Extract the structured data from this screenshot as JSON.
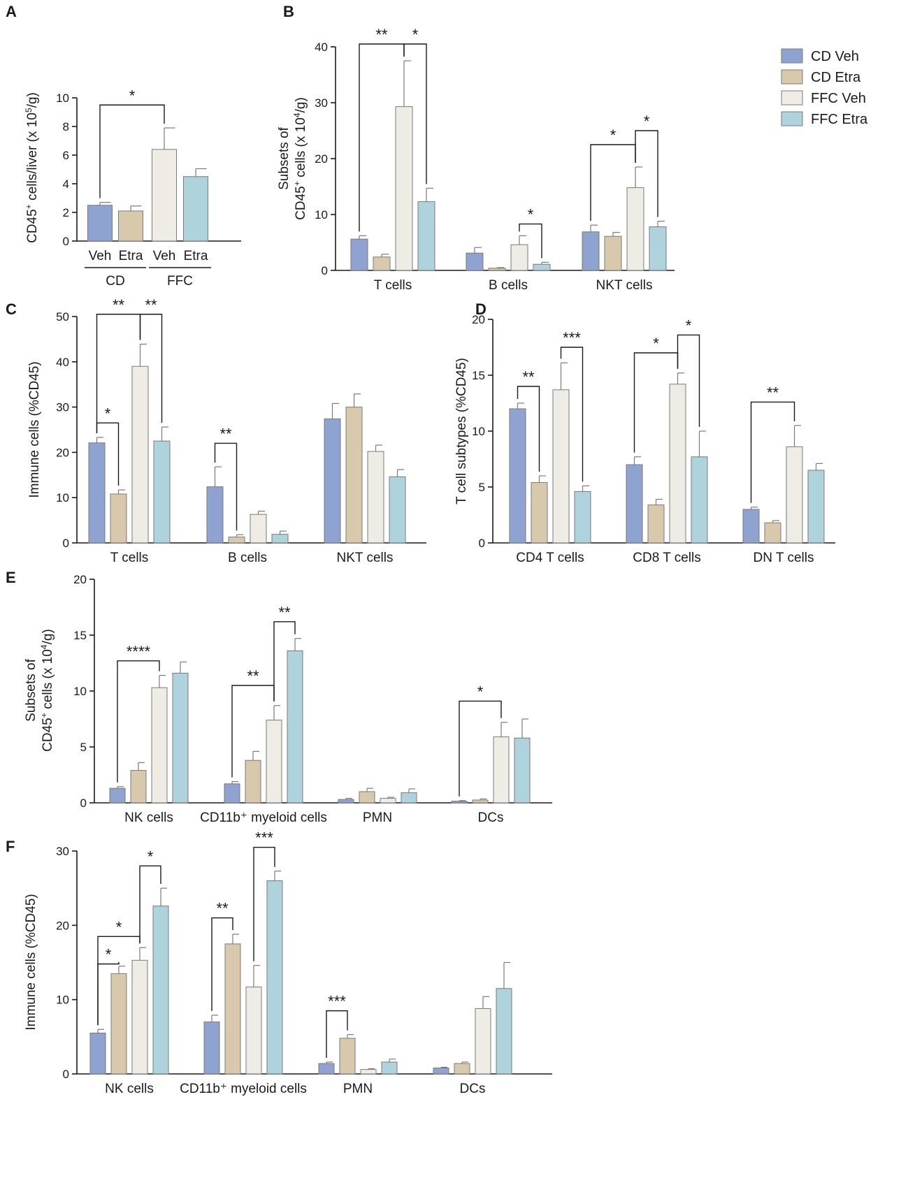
{
  "colors": {
    "CD Veh": "#8fa3d0",
    "CD Etra": "#d8c8ac",
    "FFC Veh": "#efece5",
    "FFC Etra": "#aed3dd",
    "edge": "#7a7a7a",
    "axis": "#1a1a1a"
  },
  "legend": [
    "CD Veh",
    "CD Etra",
    "FFC Veh",
    "FFC Etra"
  ],
  "chart_data": [
    {
      "panel": "A",
      "type": "bar",
      "ylabel_parts": [
        "CD45",
        "+",
        " cells/liver (x 10",
        "5",
        "/g)"
      ],
      "ylim": [
        0,
        10
      ],
      "yticks": [
        0,
        2,
        4,
        6,
        8,
        10
      ],
      "categories": [
        ""
      ],
      "series": [
        {
          "name": "CD Veh",
          "values": [
            2.5
          ],
          "errors": [
            0.2
          ]
        },
        {
          "name": "CD Etra",
          "values": [
            2.1
          ],
          "errors": [
            0.35
          ]
        },
        {
          "name": "FFC Veh",
          "values": [
            6.4
          ],
          "errors": [
            1.5
          ]
        },
        {
          "name": "FFC Etra",
          "values": [
            4.5
          ],
          "errors": [
            0.55
          ]
        }
      ],
      "bar_labels": [
        "Veh",
        "Etra",
        "Veh",
        "Etra"
      ],
      "group_labels": [
        {
          "text": "CD",
          "bars": [
            0,
            1
          ]
        },
        {
          "text": "FFC",
          "bars": [
            2,
            3
          ]
        }
      ],
      "significance": [
        {
          "category": 0,
          "from": 0,
          "to": 2,
          "y": 9.5,
          "label": "*"
        }
      ]
    },
    {
      "panel": "B",
      "type": "bar",
      "ylabel_lines": [
        [
          "Subsets of"
        ],
        [
          "CD45",
          "+",
          " cells (x 10",
          "4",
          "/g)"
        ]
      ],
      "ylim": [
        0,
        40
      ],
      "yticks": [
        0,
        10,
        20,
        30,
        40
      ],
      "categories": [
        "T cells",
        "B cells",
        "NKT cells"
      ],
      "series": [
        {
          "name": "CD Veh",
          "values": [
            5.6,
            3.1,
            6.9
          ],
          "errors": [
            0.6,
            1.0,
            1.2
          ]
        },
        {
          "name": "CD Etra",
          "values": [
            2.4,
            0.4,
            6.1
          ],
          "errors": [
            0.5,
            0.1,
            0.7
          ]
        },
        {
          "name": "FFC Veh",
          "values": [
            29.3,
            4.6,
            14.8
          ],
          "errors": [
            8.2,
            1.6,
            3.7
          ]
        },
        {
          "name": "FFC Etra",
          "values": [
            12.3,
            1.1,
            7.8
          ],
          "errors": [
            2.4,
            0.35,
            1.0
          ]
        }
      ],
      "significance": [
        {
          "category": 0,
          "from": 0,
          "to": 2,
          "y": 40.5,
          "label": "**"
        },
        {
          "category": 0,
          "from": 2,
          "to": 3,
          "y": 40.5,
          "label": "*"
        },
        {
          "category": 1,
          "from": 2,
          "to": 3,
          "y": 8.3,
          "label": "*"
        },
        {
          "category": 2,
          "from": 0,
          "to": 2,
          "y": 22.5,
          "label": "*"
        },
        {
          "category": 2,
          "from": 2,
          "to": 3,
          "y": 25.0,
          "label": "*"
        }
      ]
    },
    {
      "panel": "C",
      "type": "bar",
      "ylabel_parts": [
        "Immune cells (%CD45)"
      ],
      "ylim": [
        0,
        50
      ],
      "yticks": [
        0,
        10,
        20,
        30,
        40,
        50
      ],
      "categories": [
        "T cells",
        "B cells",
        "NKT cells"
      ],
      "series": [
        {
          "name": "CD Veh",
          "values": [
            22.1,
            12.4,
            27.4
          ],
          "errors": [
            1.2,
            4.4,
            3.4
          ]
        },
        {
          "name": "CD Etra",
          "values": [
            10.8,
            1.3,
            30.0
          ],
          "errors": [
            0.9,
            0.5,
            2.9
          ]
        },
        {
          "name": "FFC Veh",
          "values": [
            39.0,
            6.3,
            20.2
          ],
          "errors": [
            4.9,
            0.7,
            1.4
          ]
        },
        {
          "name": "FFC Etra",
          "values": [
            22.5,
            1.9,
            14.6
          ],
          "errors": [
            3.1,
            0.7,
            1.6
          ]
        }
      ],
      "significance": [
        {
          "category": 0,
          "from": 0,
          "to": 1,
          "y": 26.5,
          "label": "*"
        },
        {
          "category": 0,
          "from": 0,
          "to": 2,
          "y": 50.5,
          "label": "**"
        },
        {
          "category": 0,
          "from": 2,
          "to": 3,
          "y": 50.5,
          "label": "**"
        },
        {
          "category": 1,
          "from": 0,
          "to": 1,
          "y": 22.0,
          "label": "**"
        }
      ]
    },
    {
      "panel": "D",
      "type": "bar",
      "ylabel_parts": [
        "T cell subtypes (%CD45)"
      ],
      "ylim": [
        0,
        20
      ],
      "yticks": [
        0,
        5,
        10,
        15,
        20
      ],
      "categories": [
        "CD4 T cells",
        "CD8 T cells",
        "DN T cells"
      ],
      "series": [
        {
          "name": "CD Veh",
          "values": [
            12.0,
            7.0,
            3.0
          ],
          "errors": [
            0.5,
            0.7,
            0.2
          ]
        },
        {
          "name": "CD Etra",
          "values": [
            5.4,
            3.4,
            1.8
          ],
          "errors": [
            0.6,
            0.5,
            0.2
          ]
        },
        {
          "name": "FFC Veh",
          "values": [
            13.7,
            14.2,
            8.6
          ],
          "errors": [
            2.4,
            1.0,
            1.9
          ]
        },
        {
          "name": "FFC Etra",
          "values": [
            4.6,
            7.7,
            6.5
          ],
          "errors": [
            0.5,
            2.3,
            0.6
          ]
        }
      ],
      "significance": [
        {
          "category": 0,
          "from": 0,
          "to": 1,
          "y": 14.0,
          "label": "**"
        },
        {
          "category": 0,
          "from": 2,
          "to": 3,
          "y": 17.5,
          "label": "***"
        },
        {
          "category": 1,
          "from": 0,
          "to": 2,
          "y": 17.0,
          "label": "*"
        },
        {
          "category": 1,
          "from": 2,
          "to": 3,
          "y": 18.6,
          "label": "*"
        },
        {
          "category": 2,
          "from": 0,
          "to": 2,
          "y": 12.6,
          "label": "**"
        }
      ]
    },
    {
      "panel": "E",
      "type": "bar",
      "ylabel_lines": [
        [
          "Subsets of"
        ],
        [
          "CD45",
          "+",
          " cells (x 10",
          "4",
          "/g)"
        ]
      ],
      "ylim": [
        0,
        20
      ],
      "yticks": [
        0,
        5,
        10,
        15,
        20
      ],
      "categories": [
        "NK cells",
        "CD11b⁺ myeloid cells",
        "PMN",
        "DCs"
      ],
      "series": [
        {
          "name": "CD Veh",
          "values": [
            1.3,
            1.7,
            0.3,
            0.15
          ],
          "errors": [
            0.15,
            0.2,
            0.1,
            0.05
          ]
        },
        {
          "name": "CD Etra",
          "values": [
            2.9,
            3.8,
            1.0,
            0.25
          ],
          "errors": [
            0.7,
            0.8,
            0.3,
            0.1
          ]
        },
        {
          "name": "FFC Veh",
          "values": [
            10.3,
            7.4,
            0.4,
            5.9
          ],
          "errors": [
            1.1,
            1.3,
            0.1,
            1.3
          ]
        },
        {
          "name": "FFC Etra",
          "values": [
            11.6,
            13.6,
            0.9,
            5.8
          ],
          "errors": [
            1.0,
            1.1,
            0.35,
            1.7
          ]
        }
      ],
      "significance": [
        {
          "category": 0,
          "from": 0,
          "to": 2,
          "y": 12.7,
          "label": "****"
        },
        {
          "category": 1,
          "from": 0,
          "to": 2,
          "y": 10.5,
          "label": "**"
        },
        {
          "category": 1,
          "from": 2,
          "to": 3,
          "y": 16.2,
          "label": "**"
        },
        {
          "category": 3,
          "from": 0,
          "to": 2,
          "y": 9.1,
          "label": "*"
        }
      ]
    },
    {
      "panel": "F",
      "type": "bar",
      "ylabel_parts": [
        "Immune cells (%CD45)"
      ],
      "ylim": [
        0,
        30
      ],
      "yticks": [
        0,
        10,
        20,
        30
      ],
      "categories": [
        "NK cells",
        "CD11b⁺ myeloid cells",
        "PMN",
        "DCs"
      ],
      "series": [
        {
          "name": "CD Veh",
          "values": [
            5.5,
            7.0,
            1.4,
            0.8
          ],
          "errors": [
            0.5,
            0.9,
            0.2,
            0.1
          ]
        },
        {
          "name": "CD Etra",
          "values": [
            13.5,
            17.5,
            4.8,
            1.4
          ],
          "errors": [
            1.0,
            1.3,
            0.5,
            0.2
          ]
        },
        {
          "name": "FFC Veh",
          "values": [
            15.3,
            11.7,
            0.6,
            8.8
          ],
          "errors": [
            1.7,
            2.9,
            0.1,
            1.6
          ]
        },
        {
          "name": "FFC Etra",
          "values": [
            22.6,
            26.0,
            1.6,
            11.5
          ],
          "errors": [
            2.4,
            1.3,
            0.4,
            3.5
          ]
        }
      ],
      "significance": [
        {
          "category": 0,
          "from": 0,
          "to": 1,
          "y": 14.8,
          "label": "*"
        },
        {
          "category": 0,
          "from": 0,
          "to": 2,
          "y": 18.5,
          "label": "*"
        },
        {
          "category": 0,
          "from": 2,
          "to": 3,
          "y": 28.0,
          "label": "*"
        },
        {
          "category": 1,
          "from": 0,
          "to": 1,
          "y": 21.0,
          "label": "**"
        },
        {
          "category": 1,
          "from": 2,
          "to": 3,
          "y": 30.5,
          "label": "***"
        },
        {
          "category": 2,
          "from": 0,
          "to": 1,
          "y": 8.5,
          "label": "***"
        }
      ]
    }
  ]
}
